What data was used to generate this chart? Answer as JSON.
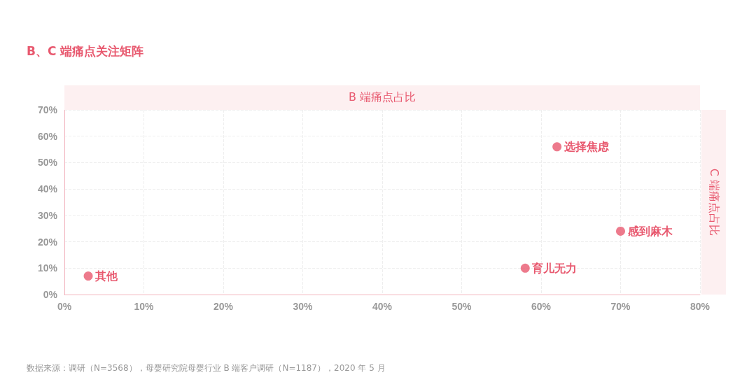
{
  "chart_data": {
    "type": "scatter",
    "title": "B、C 端痛点关注矩阵",
    "xlabel": "B 端痛点占比",
    "ylabel": "C 端痛点占比",
    "series": [
      {
        "color": "#e8596f",
        "x": [
          3,
          58,
          62,
          70
        ],
        "values": [
          7,
          10,
          56,
          24
        ]
      }
    ],
    "annotations": [
      {
        "text": "其他",
        "x": 3,
        "y": 7
      },
      {
        "text": "育儿无力",
        "x": 58,
        "y": 10
      },
      {
        "text": "选择焦虑",
        "x": 62,
        "y": 56
      },
      {
        "text": "感到麻木",
        "x": 70,
        "y": 24
      },
      "数据来源：调研（N=3568），母婴研究院母婴行业 B 端客户调研（N=1187），2020 年 5 月"
    ],
    "xlim": [
      0,
      80
    ],
    "xticks": [
      {
        "value": 0,
        "label": "0%"
      },
      {
        "value": 10,
        "label": "10%"
      },
      {
        "value": 20,
        "label": "20%"
      },
      {
        "value": 30,
        "label": "30%"
      },
      {
        "value": 40,
        "label": "40%"
      },
      {
        "value": 50,
        "label": "50%"
      },
      {
        "value": 60,
        "label": "60%"
      },
      {
        "value": 70,
        "label": "70%"
      },
      {
        "value": 80,
        "label": "80%"
      }
    ],
    "ylim": [
      0,
      70
    ],
    "yticks": [
      {
        "value": 0,
        "label": "0%"
      },
      {
        "value": 10,
        "label": "10%"
      },
      {
        "value": 20,
        "label": "20%"
      },
      {
        "value": 30,
        "label": "30%"
      },
      {
        "value": 40,
        "label": "40%"
      },
      {
        "value": 50,
        "label": "50%"
      },
      {
        "value": 60,
        "label": "60%"
      },
      {
        "value": 70,
        "label": "70%"
      }
    ],
    "grid": true,
    "marker": "circle"
  }
}
